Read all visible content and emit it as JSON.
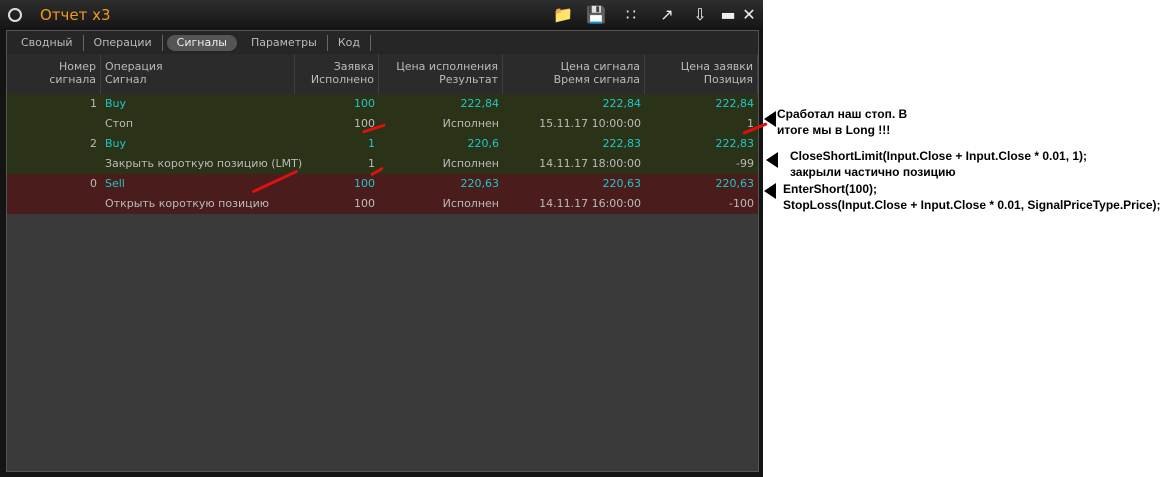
{
  "window": {
    "title": "Отчет x3",
    "icons": [
      "folder-icon",
      "save-icon",
      "scatter-chart-icon",
      "line-chart-icon",
      "down-arrow-icon",
      "minimize-icon",
      "close-icon"
    ]
  },
  "tabs": [
    "Сводный",
    "Операции",
    "Сигналы",
    "Параметры",
    "Код"
  ],
  "active_tab": "Сигналы",
  "headers": [
    [
      "",
      "Номер сигнала"
    ],
    [
      "Операция",
      "Сигнал"
    ],
    [
      "Заявка",
      "Исполнено"
    ],
    [
      "Цена исполнения",
      "Результат"
    ],
    [
      "Цена сигнала",
      "Время сигнала"
    ],
    [
      "Цена заявки",
      "Позиция"
    ]
  ],
  "rows": [
    {
      "num": "1",
      "op": "Buy",
      "qty": "100",
      "exec": "222,84",
      "sig": "222,84",
      "ord": "222,84",
      "color": "#2a3218",
      "cyan": true
    },
    {
      "num": "",
      "op": "Стоп",
      "qty": "100",
      "exec": "Исполнен",
      "sig": "15.11.17 10:00:00",
      "ord": "1",
      "color": "#2a3218",
      "cyan": false
    },
    {
      "num": "2",
      "op": "Buy",
      "qty": "1",
      "exec": "220,6",
      "sig": "222,83",
      "ord": "222,83",
      "color": "#2a3218",
      "cyan": true
    },
    {
      "num": "",
      "op": "Закрыть короткую позицию (LMT)",
      "qty": "1",
      "exec": "Исполнен",
      "sig": "14.11.17 18:00:00",
      "ord": "-99",
      "color": "#2a3218",
      "cyan": false
    },
    {
      "num": "0",
      "op": "Sell",
      "qty": "100",
      "exec": "220,63",
      "sig": "220,63",
      "ord": "220,63",
      "color": "#4a1c1c",
      "cyan": true
    },
    {
      "num": "",
      "op": "Открыть короткую позицию",
      "qty": "100",
      "exec": "Исполнен",
      "sig": "14.11.17 16:00:00",
      "ord": "-100",
      "color": "#4a1c1c",
      "cyan": false
    }
  ],
  "annotations": [
    {
      "lines": [
        "Сработал наш стоп. В",
        "итоге мы в Long !!!"
      ]
    },
    {
      "lines": [
        "CloseShortLimit(Input.Close + Input.Close * 0.01, 1);",
        "закрыли частично позицию"
      ]
    },
    {
      "lines": [
        "EnterShort(100);",
        "StopLoss(Input.Close + Input.Close * 0.01, SignalPriceType.Price);"
      ]
    }
  ]
}
